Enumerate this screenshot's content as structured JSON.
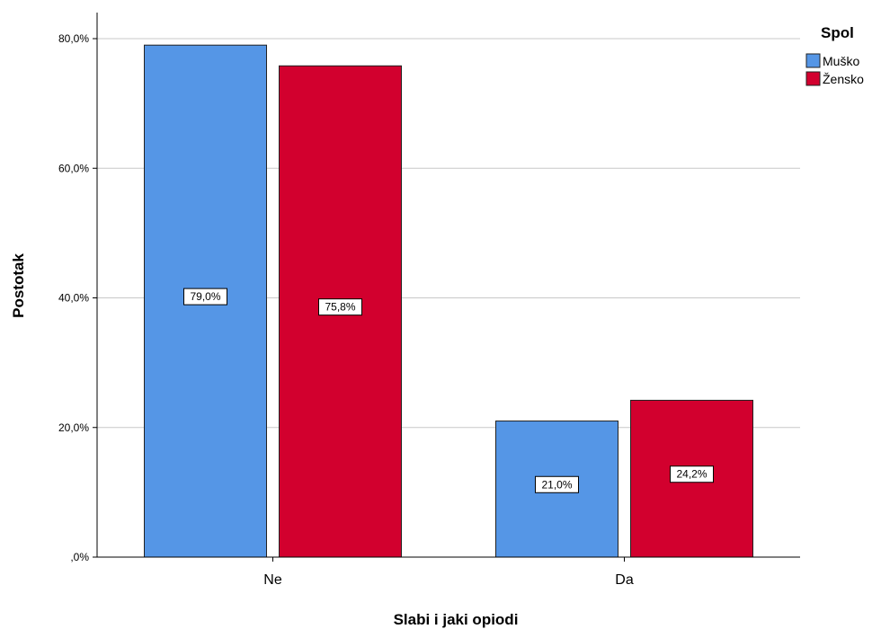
{
  "chart_data": {
    "type": "bar",
    "title": "",
    "xlabel": "Slabi i jaki opiodi",
    "ylabel": "Postotak",
    "categories": [
      "Ne",
      "Da"
    ],
    "series": [
      {
        "name": "Muško",
        "values": [
          79.0,
          21.0
        ],
        "labels": [
          "79,0%",
          "21,0%"
        ],
        "color": "#5596e6"
      },
      {
        "name": "Žensko",
        "values": [
          75.8,
          24.2
        ],
        "labels": [
          "75,8%",
          "24,2%"
        ],
        "color": "#d2002e"
      }
    ],
    "ylim": [
      0,
      85
    ],
    "yticks": [
      0,
      20,
      40,
      60,
      80
    ],
    "ytick_labels": [
      ",0%",
      "20,0%",
      "40,0%",
      "60,0%",
      "80,0%"
    ],
    "legend_title": "Spol",
    "legend_position": "top-right",
    "grid": true
  }
}
